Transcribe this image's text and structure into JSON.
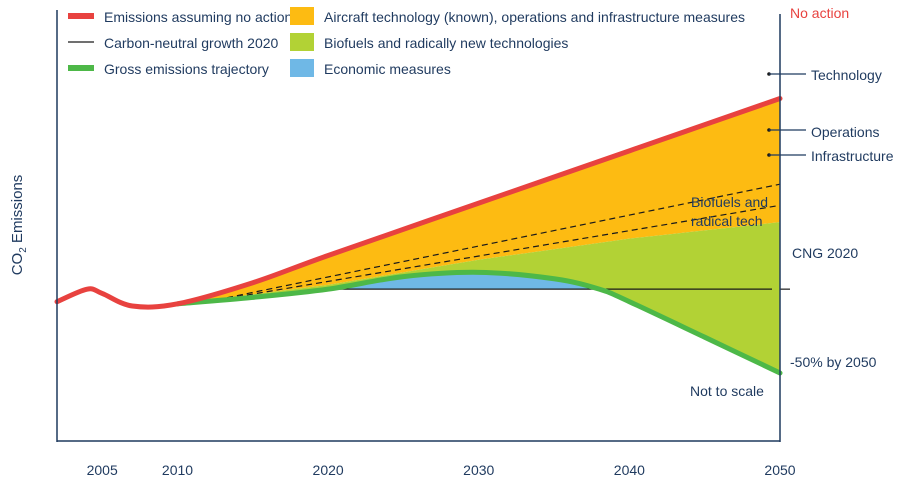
{
  "chart_data": {
    "type": "area",
    "title": "",
    "xlabel": "",
    "ylabel": "CO2 Emissions",
    "ylabel_main": "CO",
    "ylabel_sub": "2",
    "ylabel_rest": " Emissions",
    "y_scale_note": "Not to scale",
    "xlim": [
      2002,
      2050
    ],
    "ylim": [
      0,
      100
    ],
    "x_ticks": [
      {
        "value": 2005,
        "label": "2005"
      },
      {
        "value": 2010,
        "label": "2010"
      },
      {
        "value": 2020,
        "label": "2020"
      },
      {
        "value": 2030,
        "label": "2030"
      },
      {
        "value": 2040,
        "label": "2040"
      },
      {
        "value": 2050,
        "label": "2050"
      }
    ],
    "series": [
      {
        "name": "Emissions assuming no action",
        "kind": "line",
        "color": "#e8423f",
        "x": [
          2002,
          2004,
          2005,
          2007,
          2010,
          2015,
          2020,
          2030,
          2040,
          2050
        ],
        "y": [
          45.2,
          49.3,
          47.9,
          43.8,
          44.5,
          51.4,
          60.3,
          77.4,
          94.5,
          111.6
        ]
      },
      {
        "name": "Carbon-neutral growth 2020",
        "kind": "line",
        "color": "#1a1a1a",
        "x": [
          2020,
          2050
        ],
        "y": [
          49.3,
          49.3
        ]
      },
      {
        "name": "Gross emissions trajectory",
        "kind": "line",
        "color": "#4db848",
        "x": [
          2010,
          2015,
          2020,
          2025,
          2030,
          2035,
          2038,
          2040,
          2045,
          2050
        ],
        "y": [
          44.5,
          46.6,
          49.3,
          53.4,
          54.8,
          52.7,
          49.3,
          45.2,
          33.6,
          21.9
        ]
      },
      {
        "name": "Operations",
        "kind": "dashed",
        "color": "#1a1a1a",
        "x": [
          2012,
          2050
        ],
        "y": [
          45.2,
          83.6
        ]
      },
      {
        "name": "Infrastructure",
        "kind": "dashed",
        "color": "#1a1a1a",
        "x": [
          2012,
          2050
        ],
        "y": [
          45.2,
          76.7
        ]
      }
    ],
    "areas": [
      {
        "name": "Aircraft technology (known), operations and infrastructure measures",
        "color": "#fdbb12",
        "upper": "Emissions assuming no action",
        "lower_x": [
          2010,
          2020,
          2030,
          2040,
          2050
        ],
        "lower_y": [
          44.5,
          50.7,
          58.9,
          65.8,
          71.2
        ]
      },
      {
        "name": "Biofuels and radically new technologies",
        "color": "#b2d235",
        "upper_x": [
          2010,
          2020,
          2030,
          2040,
          2050
        ],
        "upper_y": [
          44.5,
          50.7,
          58.9,
          65.8,
          71.2
        ],
        "lower": "Gross emissions trajectory"
      },
      {
        "name": "Economic measures",
        "color": "#6fb8e6",
        "between": [
          "Gross emissions trajectory",
          "Carbon-neutral growth 2020"
        ],
        "x_range": [
          2020,
          2038
        ]
      }
    ],
    "legend": {
      "placement": "top-left",
      "entries": [
        {
          "label": "Emissions assuming no action",
          "type": "line",
          "color": "#e8423f"
        },
        {
          "label": "Carbon-neutral growth 2020",
          "type": "thin",
          "color": "#1a1a1a"
        },
        {
          "label": "Gross emissions trajectory",
          "type": "line",
          "color": "#4db848"
        },
        {
          "label": "Aircraft technology (known), operations and infrastructure measures",
          "type": "box",
          "color": "#fdbb12"
        },
        {
          "label": "Biofuels and radically new technologies",
          "type": "box",
          "color": "#b2d235"
        },
        {
          "label": "Economic measures",
          "type": "box",
          "color": "#6fb8e6"
        }
      ]
    },
    "annotations": {
      "no_action": "No action",
      "technology": "Technology",
      "operations": "Operations",
      "infrastructure": "Infrastructure",
      "biofuels_line1": "Biofuels and",
      "biofuels_line2": "radical tech",
      "cng": "CNG 2020",
      "fifty": "-50% by 2050",
      "not_to_scale": "Not to scale"
    },
    "annotation_colors": {
      "no_action": "#e8423f",
      "default": "#1f3a5f"
    }
  }
}
